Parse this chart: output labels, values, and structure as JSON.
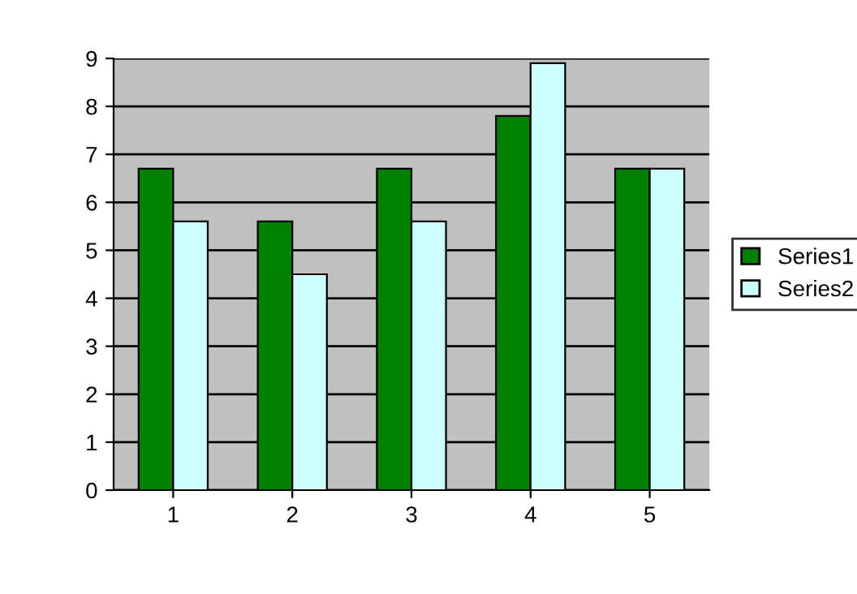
{
  "chart_data": {
    "type": "bar",
    "categories": [
      "1",
      "2",
      "3",
      "4",
      "5"
    ],
    "series": [
      {
        "name": "Series1",
        "color": "#008000",
        "values": [
          6.7,
          5.6,
          6.7,
          7.8,
          6.7
        ]
      },
      {
        "name": "Series2",
        "color": "#ccffff",
        "values": [
          5.6,
          4.5,
          5.6,
          8.9,
          6.7
        ]
      }
    ],
    "ylim": [
      0,
      9
    ],
    "yticks": [
      0,
      1,
      2,
      3,
      4,
      5,
      6,
      7,
      8,
      9
    ],
    "grid": "y",
    "legend": "right"
  }
}
